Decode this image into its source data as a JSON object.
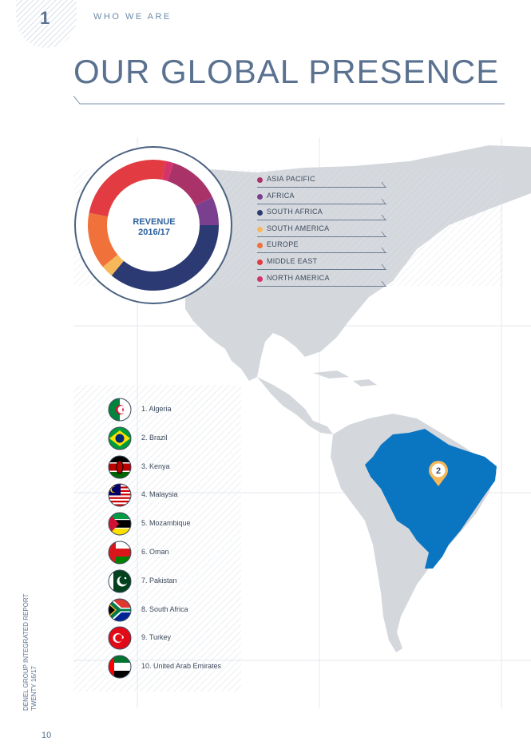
{
  "header": {
    "chapter_number": "1",
    "section_label": "WHO WE ARE",
    "title": "OUR GLOBAL PRESENCE"
  },
  "chart_data": {
    "type": "pie",
    "title": "REVENUE 2016/17",
    "categories": [
      "ASIA PACIFIC",
      "AFRICA",
      "SOUTH AFRICA",
      "SOUTH AMERICA",
      "EUROPE",
      "MIDDLE EAST",
      "NORTH AMERICA"
    ],
    "values": [
      13,
      7,
      36,
      3,
      14,
      25,
      2
    ],
    "colors": [
      "#a93369",
      "#7b3f8f",
      "#2b3a73",
      "#f6b85a",
      "#f0723a",
      "#e23b42",
      "#d6336b"
    ]
  },
  "legend": [
    {
      "label": "ASIA PACIFIC",
      "color": "#a93369"
    },
    {
      "label": "AFRICA",
      "color": "#7b3f8f"
    },
    {
      "label": "SOUTH AFRICA",
      "color": "#2b3a73"
    },
    {
      "label": "SOUTH AMERICA",
      "color": "#f6b85a"
    },
    {
      "label": "EUROPE",
      "color": "#f0723a"
    },
    {
      "label": "MIDDLE EAST",
      "color": "#e23b42"
    },
    {
      "label": "NORTH AMERICA",
      "color": "#d6336b"
    }
  ],
  "revenue_label_line1": "REVENUE",
  "revenue_label_line2": "2016/17",
  "countries": [
    {
      "label": "1. Algeria",
      "flag": "algeria-flag-icon"
    },
    {
      "label": "2. Brazil",
      "flag": "brazil-flag-icon"
    },
    {
      "label": "3. Kenya",
      "flag": "kenya-flag-icon"
    },
    {
      "label": "4. Malaysia",
      "flag": "malaysia-flag-icon"
    },
    {
      "label": "5. Mozambique",
      "flag": "mozambique-flag-icon"
    },
    {
      "label": "6. Oman",
      "flag": "oman-flag-icon"
    },
    {
      "label": "7. Pakistan",
      "flag": "pakistan-flag-icon"
    },
    {
      "label": "8. South Africa",
      "flag": "south-africa-flag-icon"
    },
    {
      "label": "9. Turkey",
      "flag": "turkey-flag-icon"
    },
    {
      "label": "10. United Arab Emirates",
      "flag": "uae-flag-icon"
    }
  ],
  "map": {
    "highlight_color": "#0a76c2",
    "land_color": "#d4d7dc",
    "marker_label": "2",
    "marker_color": "#f6b85a"
  },
  "sidebar_text": {
    "line1": "DENEL GROUP INTEGRATED REPORT",
    "line2": "TWENTY 16/17"
  },
  "page_number": "10"
}
